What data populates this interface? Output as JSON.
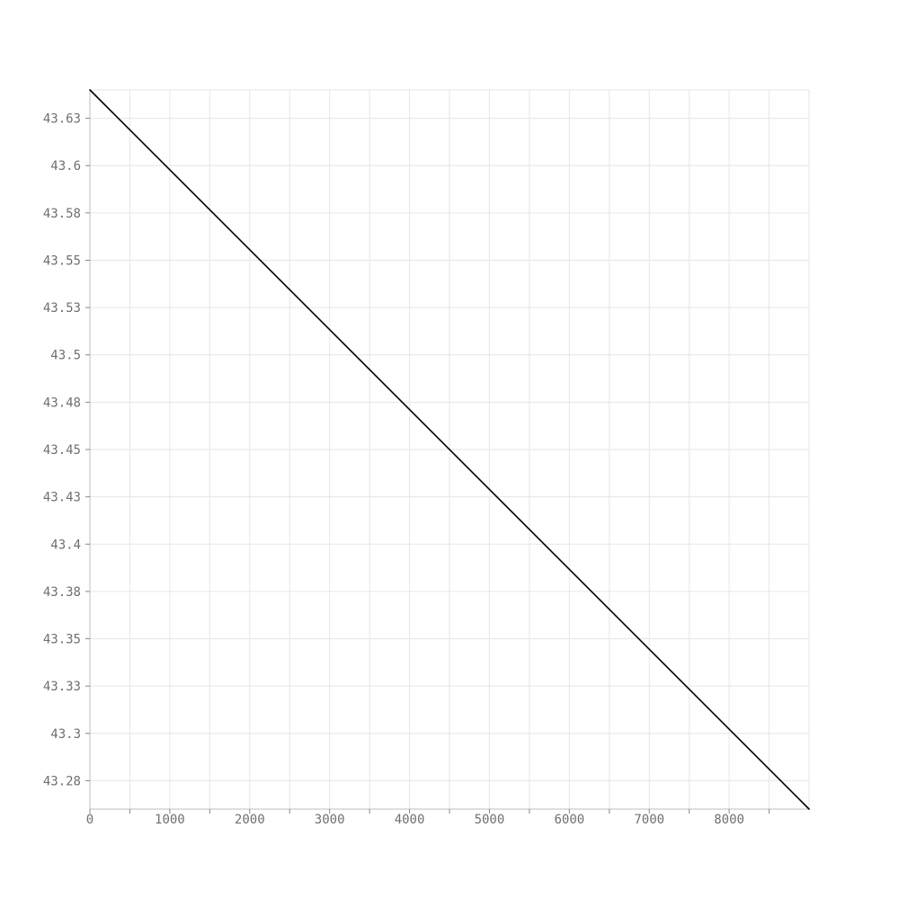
{
  "chart_data": {
    "type": "line",
    "title": "",
    "xlabel": "",
    "ylabel": "",
    "xlim": [
      0,
      9000
    ],
    "ylim": [
      43.26,
      43.64
    ],
    "x_ticks": [
      0,
      1000,
      2000,
      3000,
      4000,
      5000,
      6000,
      7000,
      8000
    ],
    "x_tick_labels": [
      "0",
      "1000",
      "2000",
      "3000",
      "4000",
      "5000",
      "6000",
      "7000",
      "8000"
    ],
    "x_minor_ticks": [
      500,
      1500,
      2500,
      3500,
      4500,
      5500,
      6500,
      7500,
      8500
    ],
    "y_ticks": [
      43.275,
      43.3,
      43.325,
      43.35,
      43.375,
      43.4,
      43.425,
      43.45,
      43.475,
      43.5,
      43.525,
      43.55,
      43.575,
      43.6,
      43.625
    ],
    "y_tick_labels": [
      "43.28",
      "43.3",
      "43.33",
      "43.35",
      "43.38",
      "43.4",
      "43.43",
      "43.45",
      "43.48",
      "43.5",
      "43.53",
      "43.55",
      "43.58",
      "43.6",
      "43.63"
    ],
    "grid": true,
    "series": [
      {
        "x": [
          0,
          9000
        ],
        "y": [
          43.64,
          43.26
        ]
      }
    ],
    "colors": {
      "line": "#000000",
      "grid": "#e6e6e6",
      "axis": "#bdbdbd",
      "tick_text": "#6f6f6f"
    }
  }
}
